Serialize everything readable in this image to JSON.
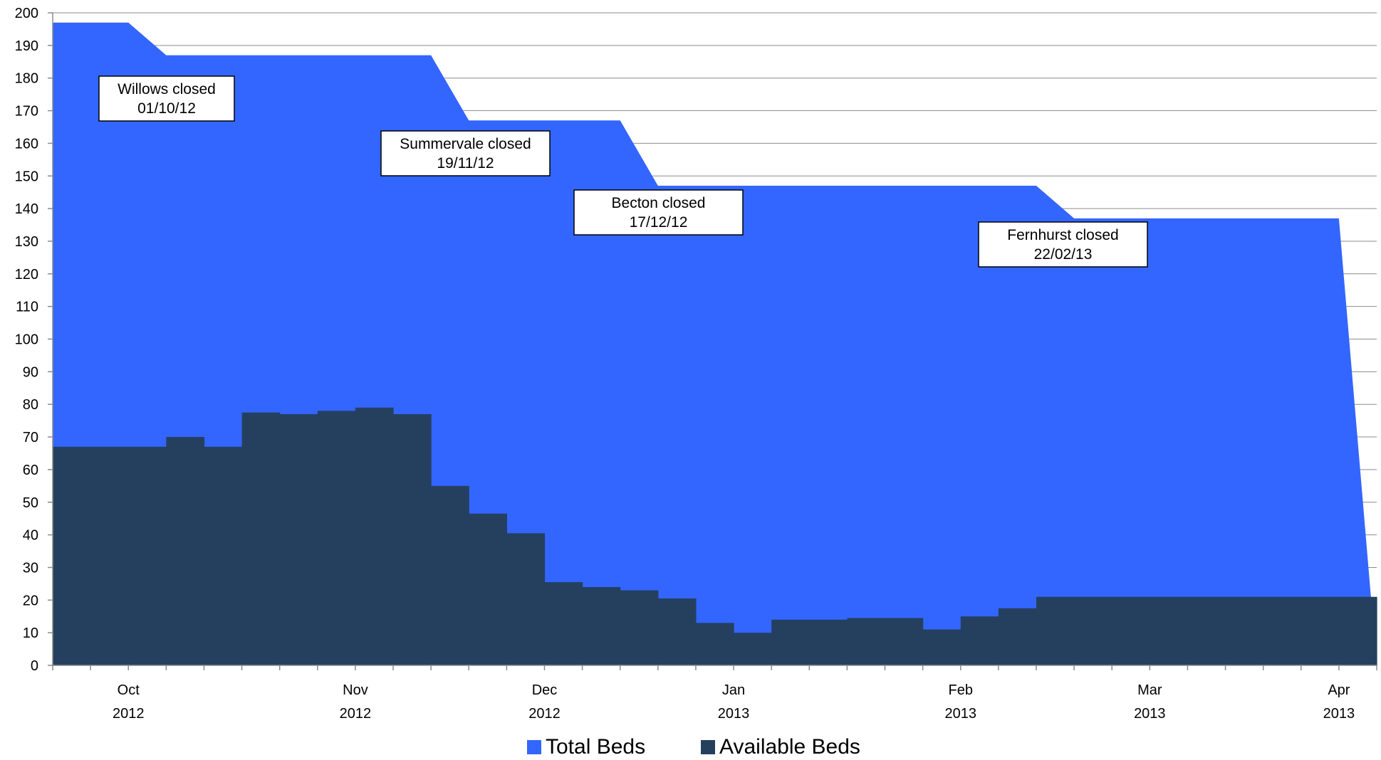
{
  "chart_data": {
    "type": "area",
    "title": "",
    "xlabel": "",
    "ylabel": "",
    "ylim": [
      0,
      200
    ],
    "y_ticks": [
      0,
      10,
      20,
      30,
      40,
      50,
      60,
      70,
      80,
      90,
      100,
      110,
      120,
      130,
      140,
      150,
      160,
      170,
      180,
      190,
      200
    ],
    "grid": "horizontal",
    "legend_placement": "bottom",
    "x_tick_labels": [
      {
        "line1": "Oct",
        "line2": "2012",
        "week": 2
      },
      {
        "line1": "Nov",
        "line2": "2012",
        "week": 8
      },
      {
        "line1": "Dec",
        "line2": "2012",
        "week": 13
      },
      {
        "line1": "Jan",
        "line2": "2013",
        "week": 18
      },
      {
        "line1": "Feb",
        "line2": "2013",
        "week": 24
      },
      {
        "line1": "Mar",
        "line2": "2013",
        "week": 29
      },
      {
        "line1": "Apr",
        "line2": "2013",
        "week": 34
      }
    ],
    "weeks": 35,
    "series": [
      {
        "name": "Total Beds",
        "color": "#3366ff",
        "style": "area",
        "points": [
          [
            0,
            197
          ],
          [
            2,
            197
          ],
          [
            3,
            187
          ],
          [
            10,
            187
          ],
          [
            11,
            167
          ],
          [
            15,
            167
          ],
          [
            16,
            147
          ],
          [
            26,
            147
          ],
          [
            27,
            137
          ],
          [
            34,
            137
          ],
          [
            35,
            0
          ]
        ]
      },
      {
        "name": "Available Beds",
        "color": "#25405f",
        "style": "step",
        "values": [
          67,
          67,
          67,
          70,
          67,
          77.5,
          77,
          78,
          79,
          77,
          55,
          46.5,
          40.5,
          25.5,
          24,
          23,
          20.5,
          13,
          10,
          14,
          14,
          14.5,
          14.5,
          11,
          15,
          17.5,
          21,
          21,
          21,
          21,
          21,
          21,
          21,
          21,
          21
        ]
      }
    ],
    "annotations": [
      {
        "line1": "Willows closed",
        "line2": "01/10/12"
      },
      {
        "line1": "Summervale closed",
        "line2": "19/11/12"
      },
      {
        "line1": "Becton closed",
        "line2": "17/12/12"
      },
      {
        "line1": "Fernhurst closed",
        "line2": "22/02/13"
      }
    ]
  }
}
